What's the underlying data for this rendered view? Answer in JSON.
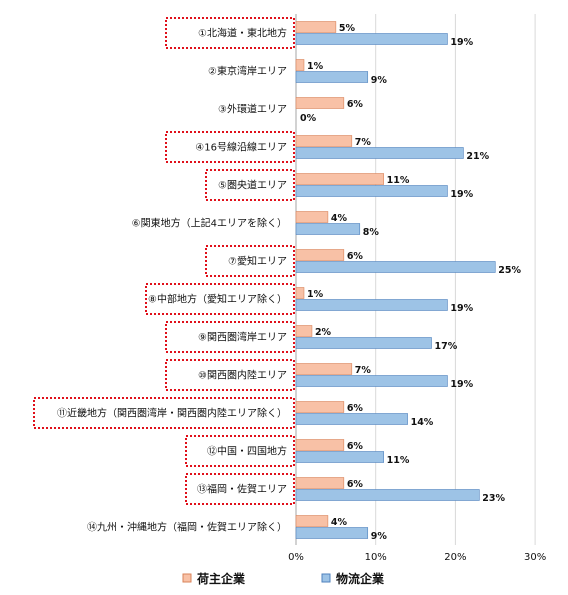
{
  "chart_data": {
    "type": "bar",
    "orientation": "horizontal",
    "categories": [
      "①北海道・東北地方",
      "②東京湾岸エリア",
      "③外環道エリア",
      "④16号線沿線エリア",
      "⑤圏央道エリア",
      "⑥関東地方（上記4エリアを除く）",
      "⑦愛知エリア",
      "⑧中部地方（愛知エリア除く）",
      "⑨関西圏湾岸エリア",
      "⑩関西圏内陸エリア",
      "⑪近畿地方（関西圏湾岸・関西圏内陸エリア除く）",
      "⑫中国・四国地方",
      "⑬福岡・佐賀エリア",
      "⑭九州・沖縄地方（福岡・佐賀エリア除く）"
    ],
    "highlighted": [
      true,
      false,
      false,
      true,
      true,
      false,
      true,
      true,
      true,
      true,
      true,
      true,
      true,
      false
    ],
    "series": [
      {
        "name": "荷主企業",
        "color": "#f8c1a6",
        "stroke": "#d9835a",
        "values": [
          5,
          1,
          6,
          7,
          11,
          4,
          6,
          1,
          2,
          7,
          6,
          6,
          6,
          4
        ],
        "labels": [
          "5%",
          "1%",
          "6%",
          "7%",
          "11%",
          "4%",
          "6%",
          "1%",
          "2%",
          "7%",
          "6%",
          "6%",
          "6%",
          "4%"
        ]
      },
      {
        "name": "物流企業",
        "color": "#9dc3e6",
        "stroke": "#4f81bd",
        "values": [
          19,
          9,
          0,
          21,
          19,
          8,
          25,
          19,
          17,
          19,
          14,
          11,
          23,
          9
        ],
        "labels": [
          "19%",
          "9%",
          "0%",
          "21%",
          "19%",
          "8%",
          "25%",
          "19%",
          "17%",
          "19%",
          "14%",
          "11%",
          "23%",
          "9%"
        ]
      }
    ],
    "xlim": [
      0,
      30
    ],
    "xticks": [
      0,
      10,
      20,
      30
    ],
    "xtick_labels": [
      "0%",
      "10%",
      "20%",
      "30%"
    ],
    "grid": "vertical",
    "legend_position": "bottom",
    "highlight_color": "#e0101a"
  }
}
